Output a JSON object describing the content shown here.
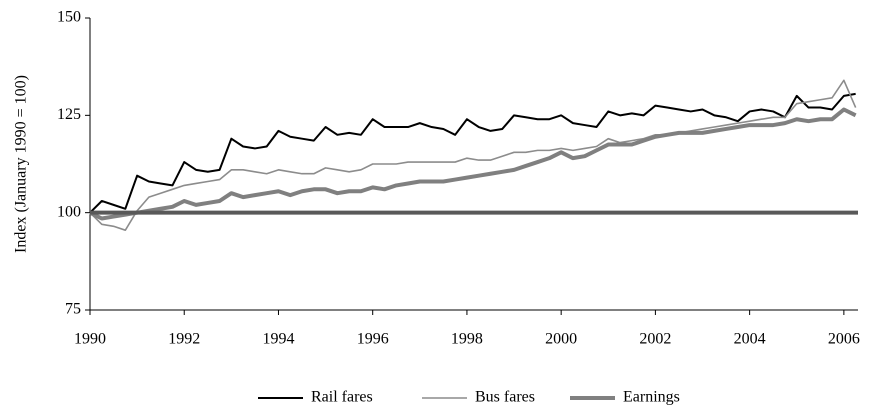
{
  "chart_data": {
    "type": "line",
    "y_label": "Index (January 1990 = 100)",
    "xlim": [
      1990,
      2006.3
    ],
    "ylim": [
      75,
      150
    ],
    "xticks": [
      1990,
      1992,
      1994,
      1996,
      1998,
      2000,
      2002,
      2004,
      2006
    ],
    "yticks": [
      75,
      100,
      125,
      150
    ],
    "reference_line": {
      "value": 100,
      "color": "#595959"
    },
    "legend": "bottom",
    "x": [
      1990,
      1990.25,
      1990.5,
      1990.75,
      1991,
      1991.25,
      1991.5,
      1991.75,
      1992,
      1992.25,
      1992.5,
      1992.75,
      1993,
      1993.25,
      1993.5,
      1993.75,
      1994,
      1994.25,
      1994.5,
      1994.75,
      1995,
      1995.25,
      1995.5,
      1995.75,
      1996,
      1996.25,
      1996.5,
      1996.75,
      1997,
      1997.25,
      1997.5,
      1997.75,
      1998,
      1998.25,
      1998.5,
      1998.75,
      1999,
      1999.25,
      1999.5,
      1999.75,
      2000,
      2000.25,
      2000.5,
      2000.75,
      2001,
      2001.25,
      2001.5,
      2001.75,
      2002,
      2002.25,
      2002.5,
      2002.75,
      2003,
      2003.25,
      2003.5,
      2003.75,
      2004,
      2004.25,
      2004.5,
      2004.75,
      2005,
      2005.25,
      2005.5,
      2005.75,
      2006,
      2006.25
    ],
    "series": [
      {
        "name": "Rail fares",
        "color": "#000000",
        "width": 2,
        "values": [
          100,
          103,
          102,
          101,
          109.5,
          108,
          107.5,
          107,
          113,
          111,
          110.5,
          111,
          119,
          117,
          116.5,
          117,
          121,
          119.5,
          119,
          118.5,
          122,
          120,
          120.5,
          120,
          124,
          122,
          122,
          122,
          123,
          122,
          121.5,
          120,
          124,
          122,
          121,
          121.5,
          125,
          124.5,
          124,
          124,
          125,
          123,
          122.5,
          122,
          126,
          125,
          125.5,
          125,
          127.5,
          127,
          126.5,
          126,
          126.5,
          125,
          124.5,
          123.5,
          126,
          126.5,
          126,
          124.5,
          130,
          127,
          127,
          126.5,
          130,
          130.5
        ]
      },
      {
        "name": "Bus fares",
        "color": "#8c8c8c",
        "width": 1.6,
        "values": [
          100,
          97,
          96.5,
          95.5,
          100.5,
          104,
          105,
          106,
          107,
          107.5,
          108,
          108.5,
          111,
          111,
          110.5,
          110,
          111,
          110.5,
          110,
          110,
          111.5,
          111,
          110.5,
          111,
          112.5,
          112.5,
          112.5,
          113,
          113,
          113,
          113,
          113,
          114,
          113.5,
          113.5,
          114.5,
          115.5,
          115.5,
          116,
          116,
          116.5,
          116,
          116.5,
          117,
          119,
          118,
          118.5,
          119,
          120,
          120,
          120.5,
          121,
          121.5,
          122,
          122.5,
          123,
          123.5,
          124,
          124.5,
          124.5,
          128,
          128.5,
          129,
          129.5,
          134,
          127
        ]
      },
      {
        "name": "Earnings",
        "color": "#808080",
        "width": 4,
        "values": [
          100,
          98.5,
          99,
          99.5,
          100,
          100.5,
          101,
          101.5,
          103,
          102,
          102.5,
          103,
          105,
          104,
          104.5,
          105,
          105.5,
          104.5,
          105.5,
          106,
          106,
          105,
          105.5,
          105.5,
          106.5,
          106,
          107,
          107.5,
          108,
          108,
          108,
          108.5,
          109,
          109.5,
          110,
          110.5,
          111,
          112,
          113,
          114,
          115.5,
          114,
          114.5,
          116,
          117.5,
          117.5,
          117.5,
          118.5,
          119.5,
          120,
          120.5,
          120.5,
          120.5,
          121,
          121.5,
          122,
          122.5,
          122.5,
          122.5,
          123,
          124,
          123.5,
          124,
          124,
          126.5,
          125
        ]
      }
    ]
  }
}
